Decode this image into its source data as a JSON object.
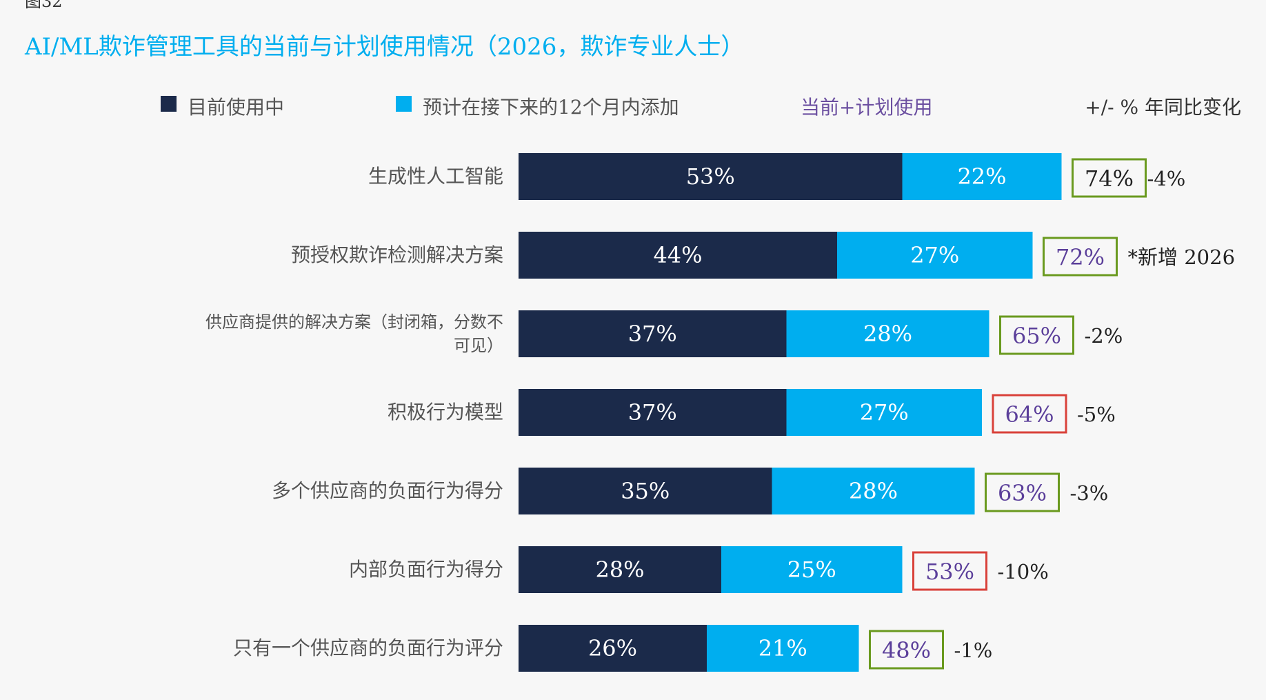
{
  "figure": {
    "label": "图32"
  },
  "title": "AI/ML欺诈管理工具的当前与计划使用情况（2026，欺诈专业人士）",
  "legend": {
    "current": "目前使用中",
    "planned": "预计在接下来的12个月内添加",
    "total": "当前+计划使用",
    "yoy": "+/- % 年同比变化"
  },
  "colors": {
    "current": "#1b2a4a",
    "planned": "#00aeef",
    "total_text": "#5b3f9a",
    "box_up": "#6a9a1f",
    "box_down": "#d9413a",
    "title": "#00aeef"
  },
  "chart_data": {
    "type": "bar",
    "orientation": "horizontal",
    "stacked": true,
    "title": "AI/ML欺诈管理工具的当前与计划使用情况（2026，欺诈专业人士）",
    "categories": [
      "生成性人工智能",
      "预授权欺诈检测解决方案",
      "供应商提供的解决方案（封闭箱，分数不可见）",
      "积极行为模型",
      "多个供应商的负面行为得分",
      "内部负面行为得分",
      "只有一个供应商的负面行为评分"
    ],
    "series": [
      {
        "name": "目前使用中",
        "values": [
          53,
          44,
          37,
          37,
          35,
          28,
          26
        ],
        "labels": [
          "53%",
          "44%",
          "37%",
          "37%",
          "35%",
          "28%",
          "26%"
        ]
      },
      {
        "name": "预计在接下来的12个月内添加",
        "values": [
          22,
          27,
          28,
          27,
          28,
          25,
          21
        ],
        "labels": [
          "22%",
          "27%",
          "28%",
          "27%",
          "28%",
          "25%",
          "21%"
        ]
      }
    ],
    "totals": [
      "74%",
      "72%",
      "65%",
      "64%",
      "63%",
      "53%",
      "48%"
    ],
    "total_box": [
      "up",
      "up",
      "up",
      "down",
      "up",
      "down",
      "up"
    ],
    "yoy": [
      "-4%",
      "*新增 2026",
      "-2%",
      "-5%",
      "-3%",
      "-10%",
      "-1%"
    ],
    "xlim": [
      0,
      100
    ]
  }
}
